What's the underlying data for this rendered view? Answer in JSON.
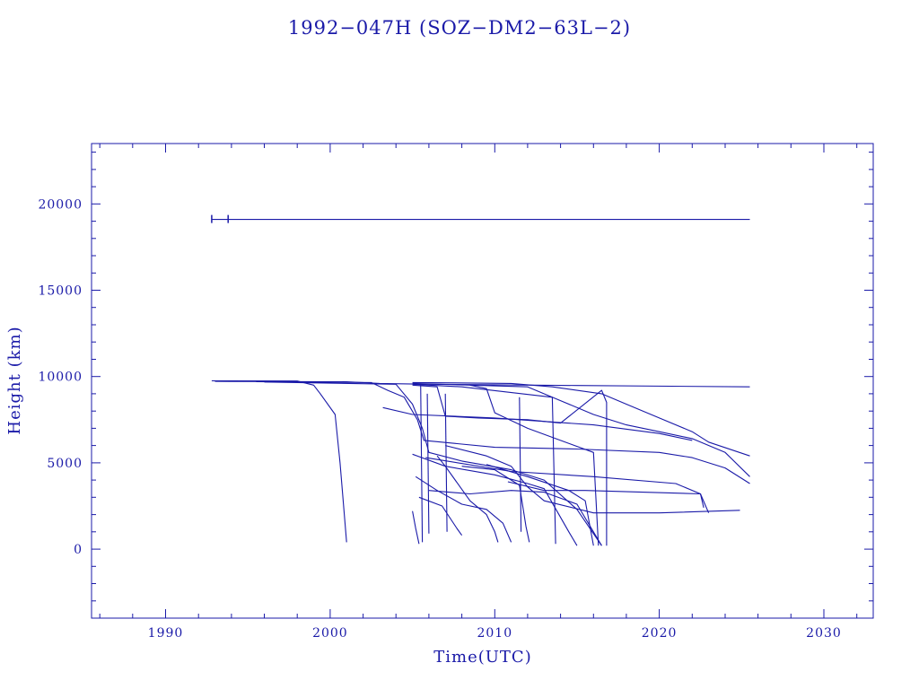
{
  "chart_data": {
    "type": "line",
    "title": "1992−047H (SOZ−DM2−63L−2)",
    "xlabel": "Time(UTC)",
    "ylabel": "Height (km)",
    "xlim": [
      1985.5,
      2033
    ],
    "ylim": [
      -4000,
      23500
    ],
    "x_ticks": [
      1990,
      2000,
      2010,
      2020,
      2030
    ],
    "y_ticks": [
      0,
      5000,
      10000,
      15000,
      20000
    ],
    "grid": false,
    "legend": "none",
    "color": "#1a1aa8",
    "series": [
      {
        "points": [
          [
            1992.8,
            19100
          ],
          [
            2025.5,
            19100
          ]
        ]
      },
      {
        "points": [
          [
            1992.8,
            9750
          ],
          [
            1998.0,
            9740
          ],
          [
            1999.0,
            9500
          ],
          [
            1999.4,
            9000
          ],
          [
            2000.3,
            7800
          ],
          [
            2000.6,
            5000
          ],
          [
            2001.0,
            400
          ]
        ]
      },
      {
        "points": [
          [
            1993.0,
            9720
          ],
          [
            2001.0,
            9700
          ],
          [
            2003.0,
            9600
          ],
          [
            2006.0,
            9550
          ],
          [
            2015.0,
            9480
          ],
          [
            2025.5,
            9400
          ]
        ]
      },
      {
        "points": [
          [
            1995.5,
            9700
          ],
          [
            2002.5,
            9650
          ],
          [
            2003.5,
            9200
          ],
          [
            2004.5,
            8800
          ],
          [
            2005.3,
            7500
          ],
          [
            2005.7,
            6300
          ],
          [
            2010.0,
            5900
          ],
          [
            2015.0,
            5800
          ],
          [
            2020.0,
            5600
          ],
          [
            2022.0,
            5300
          ],
          [
            2024.0,
            4700
          ],
          [
            2025.5,
            3800
          ]
        ]
      },
      {
        "points": [
          [
            1996.0,
            9680
          ],
          [
            2004.0,
            9550
          ],
          [
            2005.0,
            8400
          ],
          [
            2005.6,
            7000
          ],
          [
            2006.0,
            5600
          ],
          [
            2008.0,
            5100
          ],
          [
            2011.0,
            4600
          ],
          [
            2013.0,
            4000
          ],
          [
            2015.0,
            2300
          ],
          [
            2016.5,
            200
          ]
        ]
      },
      {
        "points": [
          [
            2005.0,
            9650
          ],
          [
            2011.0,
            9600
          ],
          [
            2013.5,
            9400
          ],
          [
            2016.5,
            9000
          ],
          [
            2018.0,
            8400
          ],
          [
            2020.0,
            7600
          ],
          [
            2022.0,
            6800
          ],
          [
            2023.0,
            6200
          ],
          [
            2025.5,
            5400
          ]
        ]
      },
      {
        "points": [
          [
            2005.0,
            9600
          ],
          [
            2012.0,
            9400
          ],
          [
            2014.0,
            8600
          ],
          [
            2016.0,
            7800
          ],
          [
            2018.0,
            7200
          ],
          [
            2020.0,
            6800
          ],
          [
            2022.0,
            6400
          ],
          [
            2024.0,
            5600
          ],
          [
            2025.5,
            4200
          ]
        ]
      },
      {
        "points": [
          [
            2005.0,
            9550
          ],
          [
            2008.0,
            9400
          ],
          [
            2013.5,
            8800
          ],
          [
            2013.7,
            300
          ]
        ]
      },
      {
        "points": [
          [
            2003.2,
            8200
          ],
          [
            2005.0,
            7800
          ],
          [
            2010.0,
            7600
          ],
          [
            2016.0,
            7200
          ],
          [
            2020.0,
            6700
          ],
          [
            2022.0,
            6300
          ]
        ]
      },
      {
        "points": [
          [
            2005.0,
            9500
          ],
          [
            2006.5,
            9400
          ],
          [
            2007.0,
            7700
          ],
          [
            2009.0,
            7600
          ],
          [
            2012.0,
            7500
          ],
          [
            2014.0,
            7300
          ],
          [
            2016.5,
            9200
          ],
          [
            2016.8,
            8500
          ],
          [
            2016.8,
            200
          ]
        ]
      },
      {
        "points": [
          [
            2005.0,
            5500
          ],
          [
            2007.0,
            4800
          ],
          [
            2010.0,
            4300
          ],
          [
            2012.0,
            3800
          ],
          [
            2013.0,
            3500
          ],
          [
            2014.5,
            1000
          ],
          [
            2015.0,
            200
          ]
        ]
      },
      {
        "points": [
          [
            2005.2,
            4200
          ],
          [
            2006.5,
            3400
          ],
          [
            2008.0,
            2600
          ],
          [
            2009.5,
            2300
          ],
          [
            2010.5,
            1500
          ],
          [
            2011.0,
            400
          ]
        ]
      },
      {
        "points": [
          [
            2005.4,
            3000
          ],
          [
            2006.8,
            2500
          ],
          [
            2007.7,
            1200
          ],
          [
            2008.0,
            800
          ]
        ]
      },
      {
        "points": [
          [
            2006.5,
            5400
          ],
          [
            2007.0,
            4800
          ],
          [
            2008.5,
            2800
          ],
          [
            2009.5,
            2000
          ],
          [
            2010.0,
            1000
          ],
          [
            2010.2,
            400
          ]
        ]
      },
      {
        "points": [
          [
            2007.0,
            6000
          ],
          [
            2009.5,
            5400
          ],
          [
            2011.0,
            4800
          ],
          [
            2012.0,
            3600
          ],
          [
            2013.0,
            2800
          ],
          [
            2016.0,
            2100
          ],
          [
            2020.0,
            2100
          ],
          [
            2024.9,
            2250
          ]
        ]
      },
      {
        "points": [
          [
            2008.0,
            4800
          ],
          [
            2010.0,
            4600
          ],
          [
            2011.5,
            3700
          ],
          [
            2011.9,
            1300
          ],
          [
            2012.1,
            400
          ]
        ]
      },
      {
        "points": [
          [
            2008.5,
            9500
          ],
          [
            2009.5,
            9300
          ],
          [
            2010.0,
            7900
          ],
          [
            2012.0,
            7000
          ],
          [
            2016.0,
            5600
          ],
          [
            2016.3,
            200
          ]
        ]
      },
      {
        "points": [
          [
            2005.8,
            5300
          ],
          [
            2011.0,
            4500
          ],
          [
            2016.0,
            4200
          ],
          [
            2021.0,
            3800
          ],
          [
            2022.5,
            3200
          ],
          [
            2023.0,
            2100
          ]
        ]
      },
      {
        "points": [
          [
            2009.5,
            4900
          ],
          [
            2012.0,
            4200
          ],
          [
            2014.5,
            3400
          ],
          [
            2015.5,
            2800
          ],
          [
            2016.0,
            200
          ]
        ]
      },
      {
        "points": [
          [
            2010.8,
            3900
          ],
          [
            2013.0,
            3400
          ],
          [
            2015.5,
            3400
          ],
          [
            2022.5,
            3200
          ],
          [
            2022.7,
            2400
          ]
        ]
      },
      {
        "points": [
          [
            2006.0,
            3400
          ],
          [
            2008.5,
            3200
          ],
          [
            2011.0,
            3400
          ],
          [
            2013.0,
            3300
          ],
          [
            2015.0,
            2600
          ],
          [
            2016.5,
            200
          ]
        ]
      },
      {
        "points": [
          [
            2005.0,
            2200
          ],
          [
            2005.2,
            1200
          ],
          [
            2005.4,
            300
          ]
        ]
      },
      {
        "points": [
          [
            2005.5,
            9600
          ],
          [
            2005.6,
            400
          ]
        ]
      },
      {
        "points": [
          [
            2005.9,
            9000
          ],
          [
            2006.0,
            900
          ]
        ]
      },
      {
        "points": [
          [
            2007.0,
            9000
          ],
          [
            2007.1,
            1000
          ]
        ]
      },
      {
        "points": [
          [
            2011.5,
            8800
          ],
          [
            2011.6,
            1000
          ]
        ]
      }
    ]
  }
}
